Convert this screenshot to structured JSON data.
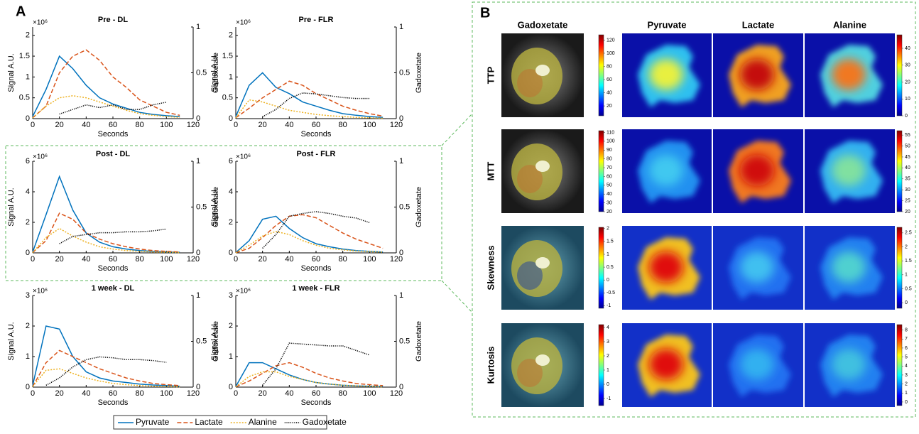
{
  "panel_a": {
    "label": "A"
  },
  "chart_data": [
    {
      "type": "line",
      "title": "Pre - DL",
      "xlabel": "Seconds",
      "ylabel": "Signal A.U.",
      "y2label": "Gadoxetate",
      "y_multiplier": "×10⁶",
      "x": [
        0,
        10,
        20,
        30,
        40,
        50,
        60,
        70,
        80,
        90,
        100,
        110
      ],
      "xlim": [
        0,
        120
      ],
      "xticks": [
        0,
        20,
        40,
        60,
        80,
        100,
        120
      ],
      "ylim": [
        0,
        2.2
      ],
      "yticks": [
        0,
        0.5,
        1,
        1.5,
        2
      ],
      "y2lim": [
        0,
        1
      ],
      "y2ticks": [
        0,
        0.5,
        1
      ],
      "series": [
        {
          "name": "Pyruvate",
          "color": "#0072bd",
          "style": "solid",
          "values": [
            0.05,
            0.7,
            1.5,
            1.2,
            0.8,
            0.5,
            0.35,
            0.25,
            0.15,
            0.1,
            0.07,
            0.05
          ]
        },
        {
          "name": "Lactate",
          "color": "#d95319",
          "style": "dashed",
          "values": [
            0.02,
            0.3,
            1.1,
            1.5,
            1.65,
            1.4,
            1.0,
            0.75,
            0.45,
            0.3,
            0.15,
            0.08
          ]
        },
        {
          "name": "Alanine",
          "color": "#edb120",
          "style": "dashdot",
          "values": [
            0.02,
            0.3,
            0.5,
            0.55,
            0.5,
            0.4,
            0.3,
            0.2,
            0.12,
            0.08,
            0.05,
            0.03
          ]
        },
        {
          "name": "Gadoxetate",
          "color": "#000000",
          "style": "dotted",
          "axis": "y2",
          "values": [
            null,
            null,
            0.05,
            0.1,
            0.15,
            0.12,
            0.15,
            0.1,
            0.1,
            0.15,
            0.18,
            null
          ]
        }
      ]
    },
    {
      "type": "line",
      "title": "Pre - FLR",
      "xlabel": "Seconds",
      "ylabel": "Signal A.U.",
      "y2label": "Gadoxetate",
      "y_multiplier": "×10⁶",
      "x": [
        0,
        10,
        20,
        30,
        40,
        50,
        60,
        70,
        80,
        90,
        100,
        110
      ],
      "xlim": [
        0,
        120
      ],
      "xticks": [
        0,
        20,
        40,
        60,
        80,
        100,
        120
      ],
      "ylim": [
        0,
        2.2
      ],
      "yticks": [
        0,
        0.5,
        1,
        1.5,
        2
      ],
      "y2lim": [
        0,
        1
      ],
      "y2ticks": [
        0,
        0.5,
        1
      ],
      "series": [
        {
          "name": "Pyruvate",
          "color": "#0072bd",
          "style": "solid",
          "values": [
            0.05,
            0.8,
            1.1,
            0.75,
            0.6,
            0.4,
            0.3,
            0.2,
            0.12,
            0.08,
            0.05,
            0.03
          ]
        },
        {
          "name": "Lactate",
          "color": "#d95319",
          "style": "dashed",
          "values": [
            0.02,
            0.25,
            0.5,
            0.7,
            0.9,
            0.8,
            0.6,
            0.45,
            0.3,
            0.2,
            0.12,
            0.06
          ]
        },
        {
          "name": "Alanine",
          "color": "#edb120",
          "style": "dashdot",
          "values": [
            0.02,
            0.45,
            0.4,
            0.3,
            0.2,
            0.15,
            0.1,
            0.07,
            0.05,
            0.03,
            0.02,
            0.01
          ]
        },
        {
          "name": "Gadoxetate",
          "color": "#000000",
          "style": "dotted",
          "axis": "y2",
          "values": [
            null,
            null,
            0.02,
            0.1,
            0.22,
            0.28,
            0.27,
            0.25,
            0.23,
            0.22,
            0.22,
            null
          ]
        }
      ]
    },
    {
      "type": "line",
      "title": "Post - DL",
      "xlabel": "Seconds",
      "ylabel": "Signal A.U.",
      "y2label": "Gadoxetate",
      "y_multiplier": "×10⁶",
      "x": [
        0,
        10,
        20,
        30,
        40,
        50,
        60,
        70,
        80,
        90,
        100,
        110
      ],
      "xlim": [
        0,
        120
      ],
      "xticks": [
        0,
        20,
        40,
        60,
        80,
        100,
        120
      ],
      "ylim": [
        0,
        6
      ],
      "yticks": [
        0,
        2,
        4,
        6
      ],
      "y2lim": [
        0,
        1
      ],
      "y2ticks": [
        0,
        0.5,
        1
      ],
      "series": [
        {
          "name": "Pyruvate",
          "color": "#0072bd",
          "style": "solid",
          "values": [
            0.05,
            2.5,
            5.0,
            2.8,
            1.3,
            0.7,
            0.4,
            0.25,
            0.15,
            0.1,
            0.06,
            0.04
          ]
        },
        {
          "name": "Lactate",
          "color": "#d95319",
          "style": "dashed",
          "values": [
            0.02,
            0.8,
            2.6,
            2.2,
            1.3,
            0.9,
            0.6,
            0.4,
            0.25,
            0.15,
            0.1,
            0.06
          ]
        },
        {
          "name": "Alanine",
          "color": "#edb120",
          "style": "dashdot",
          "values": [
            0.02,
            1.0,
            1.6,
            1.1,
            0.7,
            0.4,
            0.25,
            0.15,
            0.1,
            0.06,
            0.04,
            0.02
          ]
        },
        {
          "name": "Gadoxetate",
          "color": "#000000",
          "style": "dotted",
          "axis": "y2",
          "values": [
            null,
            null,
            0.1,
            0.18,
            0.2,
            0.22,
            0.22,
            0.23,
            0.23,
            0.24,
            0.26,
            null
          ]
        }
      ]
    },
    {
      "type": "line",
      "title": "Post - FLR",
      "xlabel": "Seconds",
      "ylabel": "Signal A.U.",
      "y2label": "Gadoxetate",
      "y_multiplier": "×10⁶",
      "x": [
        0,
        10,
        20,
        30,
        40,
        50,
        60,
        70,
        80,
        90,
        100,
        110
      ],
      "xlim": [
        0,
        120
      ],
      "xticks": [
        0,
        20,
        40,
        60,
        80,
        100,
        120
      ],
      "ylim": [
        0,
        6
      ],
      "yticks": [
        0,
        2,
        4,
        6
      ],
      "y2lim": [
        0,
        1
      ],
      "y2ticks": [
        0,
        0.5,
        1
      ],
      "series": [
        {
          "name": "Pyruvate",
          "color": "#0072bd",
          "style": "solid",
          "values": [
            0.02,
            0.8,
            2.2,
            2.4,
            1.6,
            1.0,
            0.6,
            0.4,
            0.25,
            0.15,
            0.1,
            0.05
          ]
        },
        {
          "name": "Lactate",
          "color": "#d95319",
          "style": "dashed",
          "values": [
            0.01,
            0.3,
            1.0,
            1.8,
            2.4,
            2.5,
            2.3,
            1.8,
            1.3,
            0.9,
            0.6,
            0.3
          ]
        },
        {
          "name": "Alanine",
          "color": "#edb120",
          "style": "dashdot",
          "values": [
            0.01,
            0.5,
            1.1,
            1.4,
            1.2,
            0.8,
            0.5,
            0.3,
            0.2,
            0.12,
            0.08,
            0.05
          ]
        },
        {
          "name": "Gadoxetate",
          "color": "#000000",
          "style": "dotted",
          "axis": "y2",
          "values": [
            null,
            null,
            0.05,
            0.2,
            0.4,
            0.43,
            0.45,
            0.43,
            0.4,
            0.38,
            0.33,
            null
          ]
        }
      ]
    },
    {
      "type": "line",
      "title": "1 week - DL",
      "xlabel": "Seconds",
      "ylabel": "Signal A.U.",
      "y2label": "Gadoxetate",
      "y_multiplier": "×10⁶",
      "x": [
        0,
        10,
        20,
        30,
        40,
        50,
        60,
        70,
        80,
        90,
        100,
        110
      ],
      "xlim": [
        0,
        120
      ],
      "xticks": [
        0,
        20,
        40,
        60,
        80,
        100,
        120
      ],
      "ylim": [
        0,
        3
      ],
      "yticks": [
        0,
        1,
        2,
        3
      ],
      "y2lim": [
        0,
        1
      ],
      "y2ticks": [
        0,
        0.5,
        1
      ],
      "series": [
        {
          "name": "Pyruvate",
          "color": "#0072bd",
          "style": "solid",
          "values": [
            0.05,
            2.0,
            1.9,
            1.0,
            0.5,
            0.3,
            0.2,
            0.15,
            0.1,
            0.07,
            0.05,
            0.03
          ]
        },
        {
          "name": "Lactate",
          "color": "#d95319",
          "style": "dashed",
          "values": [
            0.02,
            0.8,
            1.2,
            1.0,
            0.8,
            0.6,
            0.45,
            0.3,
            0.2,
            0.12,
            0.08,
            0.05
          ]
        },
        {
          "name": "Alanine",
          "color": "#edb120",
          "style": "dashdot",
          "values": [
            0.02,
            0.55,
            0.6,
            0.45,
            0.3,
            0.2,
            0.12,
            0.08,
            0.05,
            0.03,
            0.02,
            0.01
          ]
        },
        {
          "name": "Gadoxetate",
          "color": "#000000",
          "style": "dotted",
          "axis": "y2",
          "values": [
            null,
            0.02,
            0.1,
            0.22,
            0.3,
            0.33,
            0.32,
            0.3,
            0.3,
            0.29,
            0.27,
            null
          ]
        }
      ]
    },
    {
      "type": "line",
      "title": "1 week - FLR",
      "xlabel": "Seconds",
      "ylabel": "Signal A.U.",
      "y2label": "Gadoxetate",
      "y_multiplier": "×10⁶",
      "x": [
        0,
        10,
        20,
        30,
        40,
        50,
        60,
        70,
        80,
        90,
        100,
        110
      ],
      "xlim": [
        0,
        120
      ],
      "xticks": [
        0,
        20,
        40,
        60,
        80,
        100,
        120
      ],
      "ylim": [
        0,
        3
      ],
      "yticks": [
        0,
        1,
        2,
        3
      ],
      "y2lim": [
        0,
        1
      ],
      "y2ticks": [
        0,
        0.5,
        1
      ],
      "series": [
        {
          "name": "Pyruvate",
          "color": "#0072bd",
          "style": "solid",
          "values": [
            0.02,
            0.8,
            0.8,
            0.6,
            0.4,
            0.25,
            0.15,
            0.1,
            0.06,
            0.04,
            0.03,
            0.02
          ]
        },
        {
          "name": "Lactate",
          "color": "#d95319",
          "style": "dashed",
          "values": [
            0.01,
            0.2,
            0.45,
            0.7,
            0.8,
            0.65,
            0.45,
            0.3,
            0.2,
            0.12,
            0.08,
            0.05
          ]
        },
        {
          "name": "Alanine",
          "color": "#edb120",
          "style": "dashdot",
          "values": [
            0.01,
            0.35,
            0.5,
            0.5,
            0.35,
            0.25,
            0.15,
            0.1,
            0.06,
            0.04,
            0.02,
            0.01
          ]
        },
        {
          "name": "Gadoxetate",
          "color": "#000000",
          "style": "dotted",
          "axis": "y2",
          "values": [
            null,
            null,
            0.02,
            0.2,
            0.48,
            0.47,
            0.46,
            0.45,
            0.45,
            0.4,
            0.35,
            null
          ]
        }
      ]
    }
  ],
  "panel_b": {
    "label": "B",
    "columns": [
      "Gadoxetate",
      "Pyruvate",
      "Lactate",
      "Alanine"
    ],
    "rows": [
      {
        "label": "TTP",
        "left_colorbar": {
          "lim": [
            5,
            128
          ],
          "ticks": [
            20,
            40,
            60,
            80,
            100,
            120
          ]
        },
        "right_colorbar": {
          "lim": [
            0,
            48
          ],
          "ticks": [
            0,
            10,
            20,
            30,
            40
          ]
        }
      },
      {
        "label": "MTT",
        "left_colorbar": {
          "lim": [
            20,
            112
          ],
          "ticks": [
            20,
            30,
            40,
            50,
            60,
            70,
            80,
            90,
            100,
            110
          ]
        },
        "right_colorbar": {
          "lim": [
            20,
            57
          ],
          "ticks": [
            20,
            25,
            30,
            35,
            40,
            45,
            50,
            55
          ]
        }
      },
      {
        "label": "Skewness",
        "left_colorbar": {
          "lim": [
            -1.1,
            2.05
          ],
          "ticks": [
            -1,
            -0.5,
            0,
            0.5,
            1,
            1.5,
            2
          ]
        },
        "right_colorbar": {
          "lim": [
            -0.2,
            2.7
          ],
          "ticks": [
            0,
            0.5,
            1,
            1.5,
            2,
            2.5
          ]
        }
      },
      {
        "label": "Kurtosis",
        "left_colorbar": {
          "lim": [
            -1.5,
            4.2
          ],
          "ticks": [
            -1,
            0,
            1,
            2,
            3,
            4
          ]
        },
        "right_colorbar": {
          "lim": [
            -0.4,
            8.6
          ],
          "ticks": [
            0,
            1,
            2,
            3,
            4,
            5,
            6,
            7,
            8
          ]
        }
      }
    ]
  }
}
